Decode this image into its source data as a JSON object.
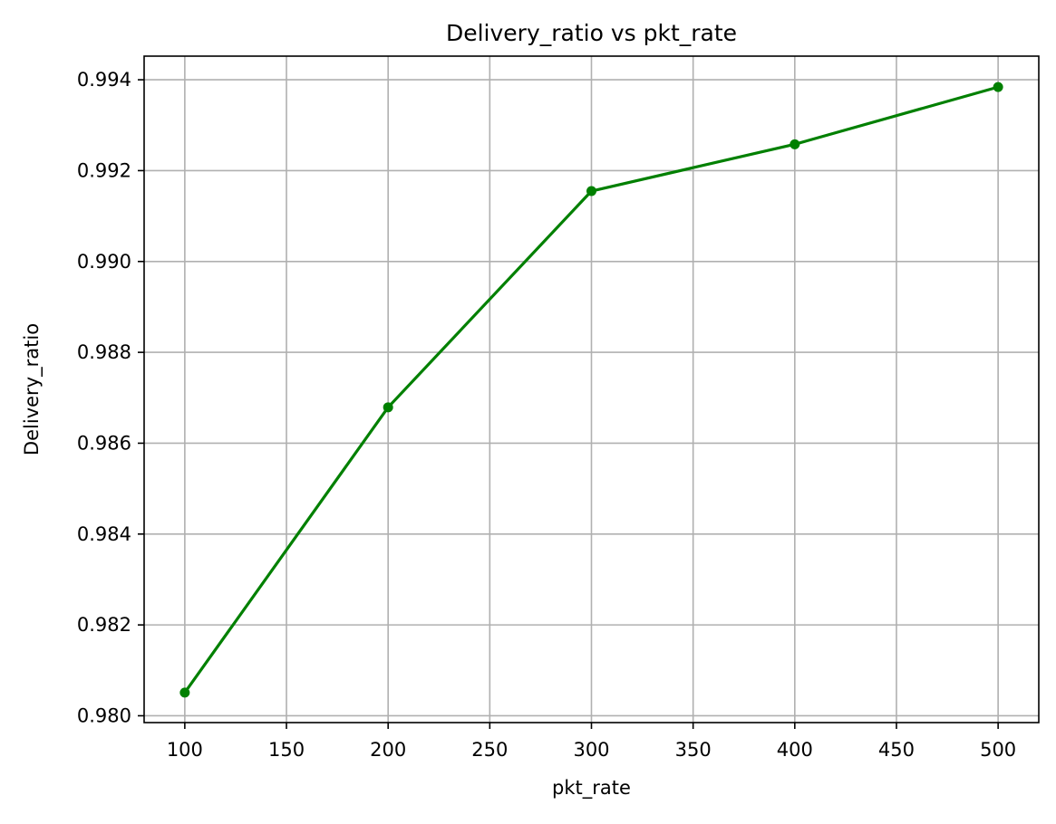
{
  "chart_data": {
    "type": "line",
    "title": "Delivery_ratio vs pkt_rate",
    "xlabel": "pkt_rate",
    "ylabel": "Delivery_ratio",
    "x": [
      100,
      200,
      300,
      400,
      500
    ],
    "series": [
      {
        "values": [
          0.98051,
          0.98679,
          0.99155,
          0.99258,
          0.99384
        ],
        "color": "#008000",
        "marker": "circle"
      }
    ],
    "xlim": [
      80,
      520
    ],
    "ylim": [
      0.97985,
      0.99452
    ],
    "x_ticks": [
      100,
      150,
      200,
      250,
      300,
      350,
      400,
      450,
      500
    ],
    "x_tick_labels": [
      "100",
      "150",
      "200",
      "250",
      "300",
      "350",
      "400",
      "450",
      "500"
    ],
    "y_ticks": [
      0.98,
      0.982,
      0.984,
      0.986,
      0.988,
      0.99,
      0.992,
      0.994
    ],
    "y_tick_labels": [
      "0.980",
      "0.982",
      "0.984",
      "0.986",
      "0.988",
      "0.990",
      "0.992",
      "0.994"
    ],
    "grid": true,
    "grid_color": "#b0b0b0",
    "legend": "none"
  }
}
